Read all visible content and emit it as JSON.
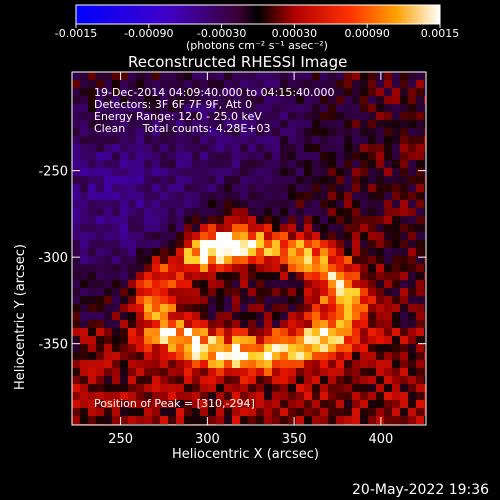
{
  "chart_data": {
    "type": "heatmap",
    "title": "Reconstructed RHESSI Image",
    "xlabel": "Heliocentric X (arcsec)",
    "ylabel": "Heliocentric Y (arcsec)",
    "xlim": [
      222,
      426
    ],
    "ylim": [
      -397,
      -193
    ],
    "x_ticks": [
      250,
      300,
      350,
      400
    ],
    "y_ticks": [
      -250,
      -300,
      -350
    ],
    "colorbar": {
      "min": -0.0015,
      "max": 0.0015,
      "tick_values": [
        -0.0015,
        -0.0009,
        -0.0003,
        0.0003,
        0.0009,
        0.0015
      ],
      "tick_labels": [
        "-0.0015",
        "-0.00090",
        "-0.00030",
        "0.00030",
        "0.00090",
        "0.0015"
      ],
      "units_label": "(photons cm⁻² s⁻¹ asec⁻²)"
    },
    "annotations": [
      "19-Dec-2014 04:09:40.000 to 04:15:40.000",
      "Detectors: 3F 6F 7F 9F, Att 0",
      "Energy Range: 12.0 - 25.0 keV",
      "Clean     Total counts: 4.28E+03"
    ],
    "peak_label": "Position of Peak = [310,-294]",
    "peak": [
      310,
      -294
    ],
    "grid": false,
    "legend": "none"
  },
  "footer": {
    "timestamp": "20-May-2022 19:36"
  }
}
